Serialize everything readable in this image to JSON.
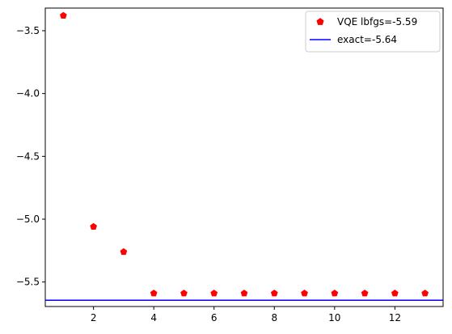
{
  "chart_data": {
    "type": "scatter",
    "title": "",
    "xlabel": "",
    "ylabel": "",
    "xlim": [
      0.4,
      13.6
    ],
    "ylim": [
      -5.695,
      -3.32
    ],
    "grid": false,
    "legend_position": "top-right",
    "x_ticks": [
      2,
      4,
      6,
      8,
      10,
      12
    ],
    "x_tick_labels": [
      "2",
      "4",
      "6",
      "8",
      "10",
      "12"
    ],
    "y_ticks": [
      -3.5,
      -4.0,
      -4.5,
      -5.0,
      -5.5
    ],
    "y_tick_labels": [
      "−3.5",
      "−4.0",
      "−4.5",
      "−5.0",
      "−5.5"
    ],
    "series": [
      {
        "name": "VQE lbfgs=-5.59",
        "kind": "scatter",
        "marker": "pentagon",
        "color": "#ff0000",
        "x": [
          1,
          2,
          3,
          4,
          5,
          6,
          7,
          8,
          9,
          10,
          11,
          12,
          13
        ],
        "y": [
          -3.38,
          -5.06,
          -5.26,
          -5.59,
          -5.59,
          -5.59,
          -5.59,
          -5.59,
          -5.59,
          -5.59,
          -5.59,
          -5.59,
          -5.59
        ]
      },
      {
        "name": "exact=-5.64",
        "kind": "hline",
        "color": "#0000ff",
        "y": -5.645
      }
    ]
  }
}
